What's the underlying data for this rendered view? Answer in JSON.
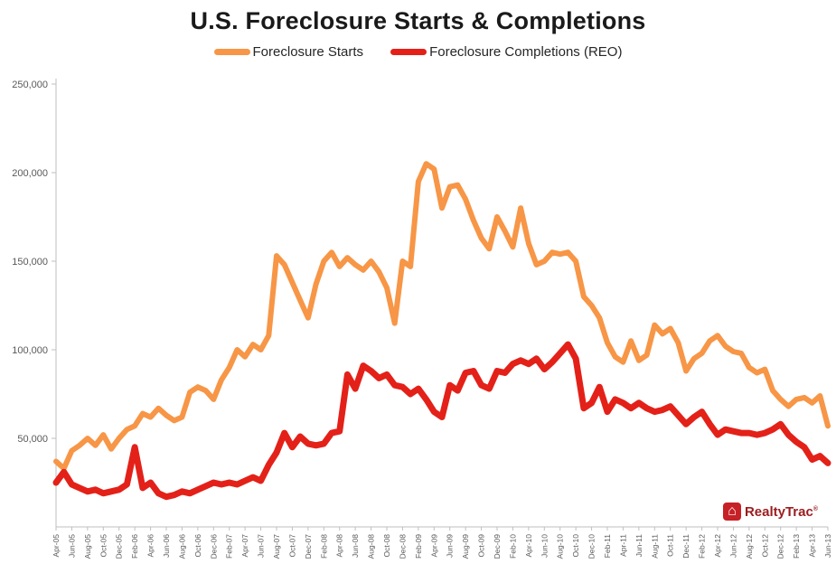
{
  "chart_data": {
    "type": "line",
    "title": "U.S. Foreclosure Starts & Completions",
    "xlabel": "",
    "ylabel": "",
    "ylim": [
      0,
      250000
    ],
    "yticks": [
      50000,
      100000,
      150000,
      200000,
      250000
    ],
    "xtick_step": 2,
    "grid": false,
    "legend_position": "top",
    "axis_color": "#BFBFBF",
    "label_color": "#595959",
    "x": [
      "Apr-05",
      "May-05",
      "Jun-05",
      "Jul-05",
      "Aug-05",
      "Sep-05",
      "Oct-05",
      "Nov-05",
      "Dec-05",
      "Jan-06",
      "Feb-06",
      "Mar-06",
      "Apr-06",
      "May-06",
      "Jun-06",
      "Jul-06",
      "Aug-06",
      "Sep-06",
      "Oct-06",
      "Nov-06",
      "Dec-06",
      "Jan-07",
      "Feb-07",
      "Mar-07",
      "Apr-07",
      "May-07",
      "Jun-07",
      "Jul-07",
      "Aug-07",
      "Sep-07",
      "Oct-07",
      "Nov-07",
      "Dec-07",
      "Jan-08",
      "Feb-08",
      "Mar-08",
      "Apr-08",
      "May-08",
      "Jun-08",
      "Jul-08",
      "Aug-08",
      "Sep-08",
      "Oct-08",
      "Nov-08",
      "Dec-08",
      "Jan-09",
      "Feb-09",
      "Mar-09",
      "Apr-09",
      "May-09",
      "Jun-09",
      "Jul-09",
      "Aug-09",
      "Sep-09",
      "Oct-09",
      "Nov-09",
      "Dec-09",
      "Jan-10",
      "Feb-10",
      "Mar-10",
      "Apr-10",
      "May-10",
      "Jun-10",
      "Jul-10",
      "Aug-10",
      "Sep-10",
      "Oct-10",
      "Nov-10",
      "Dec-10",
      "Jan-11",
      "Feb-11",
      "Mar-11",
      "Apr-11",
      "May-11",
      "Jun-11",
      "Jul-11",
      "Aug-11",
      "Sep-11",
      "Oct-11",
      "Nov-11",
      "Dec-11",
      "Jan-12",
      "Feb-12",
      "Mar-12",
      "Apr-12",
      "May-12",
      "Jun-12",
      "Jul-12",
      "Aug-12",
      "Sep-12",
      "Oct-12",
      "Nov-12",
      "Dec-12",
      "Jan-13",
      "Feb-13",
      "Mar-13",
      "Apr-13",
      "May-13",
      "Jun-13"
    ],
    "series": [
      {
        "name": "Foreclosure Starts",
        "color": "#F79646",
        "width": 6,
        "values": [
          37000,
          33000,
          43000,
          46000,
          50000,
          46000,
          52000,
          44000,
          50000,
          55000,
          57000,
          64000,
          62000,
          67000,
          63000,
          60000,
          62000,
          76000,
          79000,
          77000,
          72000,
          83000,
          90000,
          100000,
          96000,
          103000,
          100000,
          108000,
          153000,
          148000,
          138000,
          128000,
          118000,
          137000,
          150000,
          155000,
          147000,
          152000,
          148000,
          145000,
          150000,
          144000,
          135000,
          115000,
          150000,
          147000,
          195000,
          205000,
          202000,
          180000,
          192000,
          193000,
          185000,
          173000,
          163000,
          157000,
          175000,
          167000,
          158000,
          180000,
          160000,
          148000,
          150000,
          155000,
          154000,
          155000,
          150000,
          130000,
          125000,
          118000,
          104000,
          96000,
          93000,
          105000,
          94000,
          97000,
          114000,
          109000,
          112000,
          104000,
          88000,
          95000,
          98000,
          105000,
          108000,
          102000,
          99000,
          98000,
          90000,
          87000,
          89000,
          77000,
          72000,
          68000,
          72000,
          73000,
          70000,
          74000,
          57000
        ]
      },
      {
        "name": "Foreclosure Completions (REO)",
        "color": "#E32119",
        "width": 7,
        "values": [
          25000,
          31000,
          24000,
          22000,
          20000,
          21000,
          19000,
          20000,
          21000,
          24000,
          45000,
          22000,
          25000,
          19000,
          17000,
          18000,
          20000,
          19000,
          21000,
          23000,
          25000,
          24000,
          25000,
          24000,
          26000,
          28000,
          26000,
          35000,
          42000,
          53000,
          45000,
          51000,
          47000,
          46000,
          47000,
          53000,
          54000,
          86000,
          78000,
          91000,
          88000,
          84000,
          86000,
          80000,
          79000,
          75000,
          78000,
          72000,
          65000,
          62000,
          80000,
          77000,
          87000,
          88000,
          80000,
          78000,
          88000,
          87000,
          92000,
          94000,
          92000,
          95000,
          89000,
          93000,
          98000,
          103000,
          95000,
          67000,
          70000,
          79000,
          65000,
          72000,
          70000,
          67000,
          70000,
          67000,
          65000,
          66000,
          68000,
          63000,
          58000,
          62000,
          65000,
          58000,
          52000,
          55000,
          54000,
          53000,
          53000,
          52000,
          53000,
          55000,
          58000,
          52000,
          48000,
          45000,
          38000,
          40000,
          36000
        ]
      }
    ]
  },
  "watermark": {
    "text": "RealtyTrac",
    "reg": "®",
    "house_icon": "⌂",
    "box_color": "#C62127",
    "text_color": "#9C1C1F"
  }
}
